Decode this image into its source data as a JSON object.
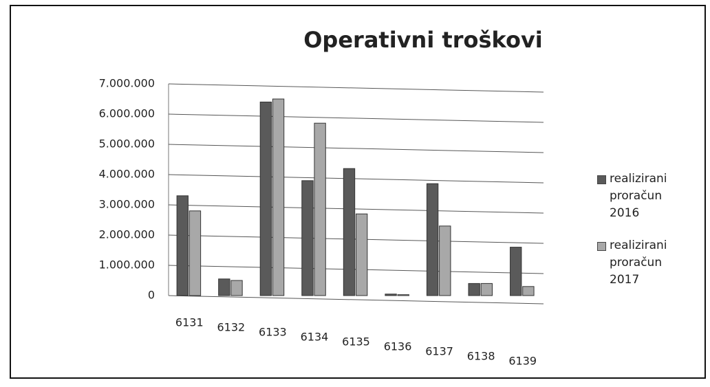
{
  "chart_data": {
    "type": "bar",
    "title": "Operativni troškovi",
    "categories": [
      "6131",
      "6132",
      "6133",
      "6134",
      "6135",
      "6136",
      "6137",
      "6138",
      "6139"
    ],
    "series": [
      {
        "name": "realizirani proračun 2016",
        "color": "#5a5a5a",
        "values": [
          3300000,
          550000,
          6400000,
          3800000,
          4200000,
          50000,
          3700000,
          400000,
          1600000
        ]
      },
      {
        "name": "realizirani proračun 2017",
        "color": "#a8a8a8",
        "values": [
          2800000,
          500000,
          6500000,
          5700000,
          2700000,
          30000,
          2300000,
          400000,
          300000
        ]
      }
    ],
    "ylim": [
      0,
      7000000
    ],
    "yticks": [
      0,
      {
        "value": 1000000,
        "label": "1.000.000"
      },
      {
        "value": 2000000,
        "label": "2.000.000"
      },
      {
        "value": 3000000,
        "label": "3.000.000"
      },
      {
        "value": 4000000,
        "label": "4.000.000"
      },
      {
        "value": 5000000,
        "label": "5.000.000"
      },
      {
        "value": 6000000,
        "label": "6.000.000"
      },
      {
        "value": 7000000,
        "label": "7.000.000"
      }
    ],
    "grid": true,
    "legend": "right"
  }
}
